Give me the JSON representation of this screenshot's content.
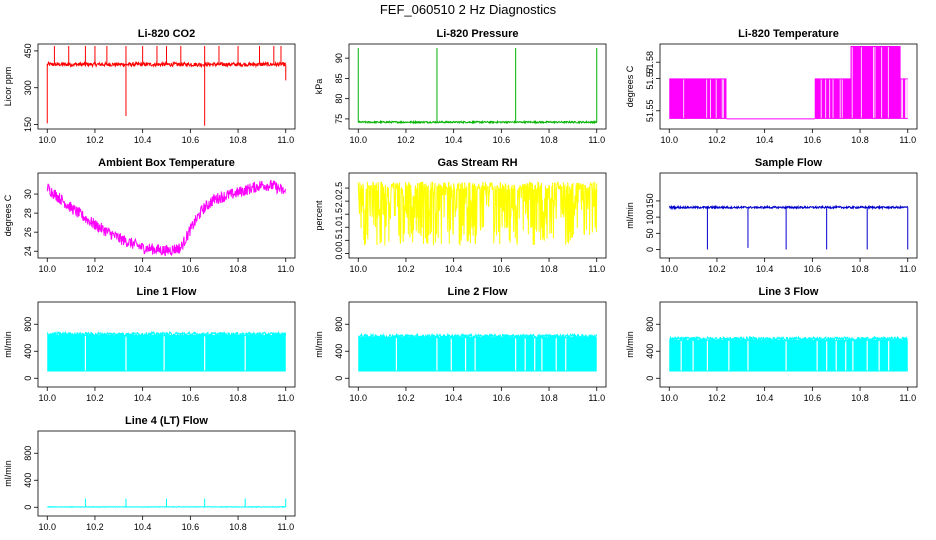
{
  "title": "FEF_060510  2 Hz Diagnostics",
  "chart_data": [
    {
      "id": "co2",
      "type": "line",
      "title": "Li-820 CO2",
      "ylabel": "Licor ppm",
      "color": "#ff0000",
      "xlim": [
        10.0,
        11.0
      ],
      "xticks": [
        10.0,
        10.2,
        10.4,
        10.6,
        10.8,
        11.0
      ],
      "xtick_labels": [
        "10.0",
        "10.2",
        "10.4",
        "10.6",
        "10.8",
        "11.0"
      ],
      "ylim": [
        140,
        470
      ],
      "yticks": [
        150,
        300,
        450
      ],
      "ytick_labels": [
        "150",
        "300",
        "450"
      ],
      "series": [
        {
          "kind": "baseline_spikes",
          "base": 395,
          "noise": 8,
          "spikes_up": [
            10.03,
            10.09,
            10.16,
            10.2,
            10.25,
            10.33,
            10.4,
            10.46,
            10.5,
            10.56,
            10.66,
            10.72,
            10.8,
            10.89,
            10.95,
            10.98
          ],
          "spike_up_to": 470,
          "spikes_down": [
            {
              "x": 10.0,
              "y": 155
            },
            {
              "x": 10.33,
              "y": 185
            },
            {
              "x": 10.66,
              "y": 145
            },
            {
              "x": 11.0,
              "y": 330
            }
          ]
        }
      ]
    },
    {
      "id": "pressure",
      "type": "line",
      "title": "Li-820 Pressure",
      "ylabel": "kPa",
      "color": "#00b300",
      "xlim": [
        10.0,
        11.0
      ],
      "xticks": [
        10.0,
        10.2,
        10.4,
        10.6,
        10.8,
        11.0
      ],
      "xtick_labels": [
        "10.0",
        "10.2",
        "10.4",
        "10.6",
        "10.8",
        "11.0"
      ],
      "ylim": [
        73,
        93
      ],
      "yticks": [
        75,
        80,
        85,
        90
      ],
      "ytick_labels": [
        "75",
        "80",
        "85",
        "90"
      ],
      "series": [
        {
          "kind": "baseline_spikes",
          "base": 74.2,
          "noise": 0.2,
          "spikes_up": [
            10.0,
            10.33,
            10.66,
            11.0
          ],
          "spike_up_to": 92.5,
          "spikes_down": []
        }
      ]
    },
    {
      "id": "temp",
      "type": "line",
      "title": "Li-820 Temperature",
      "ylabel": "degrees C",
      "color": "#ff00ff",
      "xlim": [
        10.0,
        11.0
      ],
      "xticks": [
        10.0,
        10.2,
        10.4,
        10.6,
        10.8,
        11.0
      ],
      "xtick_labels": [
        "10.0",
        "10.2",
        "10.4",
        "10.6",
        "10.8",
        "11.0"
      ],
      "ylim": [
        51.54,
        51.59
      ],
      "yticks": [
        51.55,
        51.57,
        51.58
      ],
      "ytick_labels": [
        "51.55",
        "51.57",
        "51.58"
      ],
      "series": [
        {
          "kind": "quantized",
          "levels": [
            51.545,
            51.57,
            51.59
          ],
          "segments": [
            {
              "from": 10.0,
              "to": 10.24,
              "low": 51.545,
              "high": 51.57
            },
            {
              "from": 10.24,
              "to": 10.61,
              "low": 51.545,
              "high": 51.545
            },
            {
              "from": 10.61,
              "to": 10.76,
              "low": 51.545,
              "high": 51.57
            },
            {
              "from": 10.76,
              "to": 10.97,
              "low": 51.545,
              "high": 51.59
            },
            {
              "from": 10.97,
              "to": 11.0,
              "low": 51.545,
              "high": 51.57
            }
          ]
        }
      ]
    },
    {
      "id": "ambient",
      "type": "line",
      "title": "Ambient Box Temperature",
      "ylabel": "degrees C",
      "color": "#ff00ff",
      "xlim": [
        10.0,
        11.0
      ],
      "xticks": [
        10.0,
        10.2,
        10.4,
        10.6,
        10.8,
        11.0
      ],
      "xtick_labels": [
        "10.0",
        "10.2",
        "10.4",
        "10.6",
        "10.8",
        "11.0"
      ],
      "ylim": [
        23.5,
        32
      ],
      "yticks": [
        24,
        26,
        28,
        30
      ],
      "ytick_labels": [
        "24",
        "26",
        "28",
        "30"
      ],
      "series": [
        {
          "kind": "curve",
          "noise": 0.6,
          "points": [
            [
              10.0,
              30.9
            ],
            [
              10.1,
              28.8
            ],
            [
              10.2,
              27.0
            ],
            [
              10.3,
              25.6
            ],
            [
              10.4,
              24.6
            ],
            [
              10.5,
              24.3
            ],
            [
              10.56,
              24.6
            ],
            [
              10.6,
              26.5
            ],
            [
              10.65,
              28.6
            ],
            [
              10.7,
              29.7
            ],
            [
              10.8,
              30.4
            ],
            [
              10.9,
              31.2
            ],
            [
              10.95,
              31.1
            ],
            [
              11.0,
              30.4
            ]
          ]
        }
      ]
    },
    {
      "id": "rh",
      "type": "line",
      "title": "Gas Stream RH",
      "ylabel": "percent",
      "color": "#ffff00",
      "xlim": [
        10.0,
        11.0
      ],
      "xticks": [
        10.0,
        10.2,
        10.4,
        10.6,
        10.8,
        11.0
      ],
      "xtick_labels": [
        "10.0",
        "10.2",
        "10.4",
        "10.6",
        "10.8",
        "11.0"
      ],
      "ylim": [
        -0.1,
        3.0
      ],
      "yticks": [
        0.0,
        0.5,
        1.0,
        1.5,
        2.0,
        2.5
      ],
      "ytick_labels": [
        "0.0",
        "0.5",
        "1.0",
        "1.5",
        "2.0",
        "2.5"
      ],
      "series": [
        {
          "kind": "band",
          "low": 0.3,
          "high": 2.75,
          "dense_low": 1.3
        }
      ]
    },
    {
      "id": "sample",
      "type": "line",
      "title": "Sample Flow",
      "ylabel": "ml/min",
      "color": "#0000cc",
      "xlim": [
        10.0,
        11.0
      ],
      "xticks": [
        10.0,
        10.2,
        10.4,
        10.6,
        10.8,
        11.0
      ],
      "xtick_labels": [
        "10.0",
        "10.2",
        "10.4",
        "10.6",
        "10.8",
        "11.0"
      ],
      "ylim": [
        -20,
        230
      ],
      "yticks": [
        0,
        50,
        100,
        150
      ],
      "ytick_labels": [
        "0",
        "50",
        "100",
        "150"
      ],
      "series": [
        {
          "kind": "baseline_spikes",
          "base": 130,
          "noise": 3,
          "spikes_up": [],
          "spike_up_to": 0,
          "spikes_down": [
            {
              "x": 10.16,
              "y": 0
            },
            {
              "x": 10.33,
              "y": 5
            },
            {
              "x": 10.49,
              "y": 0
            },
            {
              "x": 10.66,
              "y": 0
            },
            {
              "x": 10.83,
              "y": 0
            },
            {
              "x": 11.0,
              "y": 0
            }
          ]
        }
      ]
    },
    {
      "id": "line1",
      "type": "line",
      "title": "Line 1 Flow",
      "ylabel": "ml/min",
      "color": "#00ffff",
      "xlim": [
        10.0,
        11.0
      ],
      "xticks": [
        10.0,
        10.2,
        10.4,
        10.6,
        10.8,
        11.0
      ],
      "xtick_labels": [
        "10.0",
        "10.2",
        "10.4",
        "10.6",
        "10.8",
        "11.0"
      ],
      "ylim": [
        -100,
        1100
      ],
      "yticks": [
        0,
        400,
        800
      ],
      "ytick_labels": [
        "0",
        "400",
        "800"
      ],
      "series": [
        {
          "kind": "block",
          "low": 100,
          "high": 640,
          "gaps": [
            10.16,
            10.33,
            10.49,
            10.66,
            10.83
          ]
        }
      ]
    },
    {
      "id": "line2",
      "type": "line",
      "title": "Line 2 Flow",
      "ylabel": "ml/min",
      "color": "#00ffff",
      "xlim": [
        10.0,
        11.0
      ],
      "xticks": [
        10.0,
        10.2,
        10.4,
        10.6,
        10.8,
        11.0
      ],
      "xtick_labels": [
        "10.0",
        "10.2",
        "10.4",
        "10.6",
        "10.8",
        "11.0"
      ],
      "ylim": [
        -100,
        1100
      ],
      "yticks": [
        0,
        400,
        800
      ],
      "ytick_labels": [
        "0",
        "400",
        "800"
      ],
      "series": [
        {
          "kind": "block",
          "low": 100,
          "high": 610,
          "gaps": [
            10.16,
            10.33,
            10.39,
            10.45,
            10.49,
            10.66,
            10.7,
            10.74,
            10.77,
            10.83,
            10.87
          ]
        }
      ]
    },
    {
      "id": "line3",
      "type": "line",
      "title": "Line 3 Flow",
      "ylabel": "ml/min",
      "color": "#00ffff",
      "xlim": [
        10.0,
        11.0
      ],
      "xticks": [
        10.0,
        10.2,
        10.4,
        10.6,
        10.8,
        11.0
      ],
      "xtick_labels": [
        "10.0",
        "10.2",
        "10.4",
        "10.6",
        "10.8",
        "11.0"
      ],
      "ylim": [
        -100,
        1100
      ],
      "yticks": [
        0,
        400,
        800
      ],
      "ytick_labels": [
        "0",
        "400",
        "800"
      ],
      "series": [
        {
          "kind": "block",
          "low": 100,
          "high": 570,
          "gaps": [
            10.05,
            10.1,
            10.16,
            10.25,
            10.33,
            10.49,
            10.62,
            10.66,
            10.7,
            10.74,
            10.77,
            10.83,
            10.88,
            10.92
          ]
        }
      ]
    },
    {
      "id": "line4",
      "type": "line",
      "title": "Line 4 (LT) Flow",
      "ylabel": "ml/min",
      "color": "#00ffff",
      "xlim": [
        10.0,
        11.0
      ],
      "xticks": [
        10.0,
        10.2,
        10.4,
        10.6,
        10.8,
        11.0
      ],
      "xtick_labels": [
        "10.0",
        "10.2",
        "10.4",
        "10.6",
        "10.8",
        "11.0"
      ],
      "ylim": [
        -100,
        1100
      ],
      "yticks": [
        0,
        400,
        800
      ],
      "ytick_labels": [
        "0",
        "400",
        "800"
      ],
      "series": [
        {
          "kind": "baseline_spikes",
          "base": 5,
          "noise": 4,
          "spikes_up": [
            10.16,
            10.33,
            10.5,
            10.66,
            10.83,
            11.0
          ],
          "spike_up_to": 130,
          "spikes_down": []
        }
      ]
    }
  ]
}
